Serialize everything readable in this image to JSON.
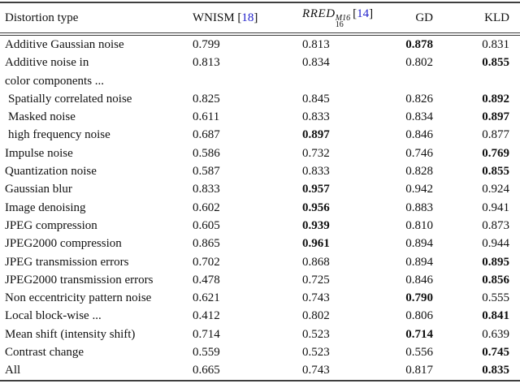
{
  "colors": {
    "citation_blue": "#2323cc",
    "text": "#111111",
    "rule": "#3f3f3f",
    "background": "#ffffff"
  },
  "table": {
    "header": {
      "col1": "Distortion type",
      "wnism_label": "WNISM",
      "wnism_cite": "18",
      "rred_label": "RRED",
      "rred_sup": "M16",
      "rred_sub": "16",
      "rred_cite": "14",
      "gd_label": "GD",
      "kld_label": "KLD",
      "bracket_open": "[",
      "bracket_close": "]"
    },
    "rows": [
      {
        "label": "Additive Gaussian noise",
        "indent": false,
        "values": [
          "0.799",
          "0.813",
          "0.878",
          "0.831"
        ],
        "bold": [
          false,
          false,
          true,
          false
        ]
      },
      {
        "label": "Additive noise in\ncolor components ...",
        "indent": false,
        "values": [
          "0.813",
          "0.834",
          "0.802",
          "0.855"
        ],
        "bold": [
          false,
          false,
          false,
          true
        ]
      },
      {
        "label": "Spatially correlated noise",
        "indent": true,
        "values": [
          "0.825",
          "0.845",
          "0.826",
          "0.892"
        ],
        "bold": [
          false,
          false,
          false,
          true
        ]
      },
      {
        "label": "Masked noise",
        "indent": true,
        "values": [
          "0.611",
          "0.833",
          "0.834",
          "0.897"
        ],
        "bold": [
          false,
          false,
          false,
          true
        ]
      },
      {
        "label": "high frequency noise",
        "indent": true,
        "values": [
          "0.687",
          "0.897",
          "0.846",
          "0.877"
        ],
        "bold": [
          false,
          true,
          false,
          false
        ]
      },
      {
        "label": "Impulse noise",
        "indent": false,
        "values": [
          "0.586",
          "0.732",
          "0.746",
          "0.769"
        ],
        "bold": [
          false,
          false,
          false,
          true
        ]
      },
      {
        "label": "Quantization noise",
        "indent": false,
        "values": [
          "0.587",
          "0.833",
          "0.828",
          "0.855"
        ],
        "bold": [
          false,
          false,
          false,
          true
        ]
      },
      {
        "label": "Gaussian blur",
        "indent": false,
        "values": [
          "0.833",
          "0.957",
          "0.942",
          "0.924"
        ],
        "bold": [
          false,
          true,
          false,
          false
        ]
      },
      {
        "label": "Image denoising",
        "indent": false,
        "values": [
          "0.602",
          "0.956",
          "0.883",
          "0.941"
        ],
        "bold": [
          false,
          true,
          false,
          false
        ]
      },
      {
        "label": "JPEG compression",
        "indent": false,
        "values": [
          "0.605",
          "0.939",
          "0.810",
          "0.873"
        ],
        "bold": [
          false,
          true,
          false,
          false
        ]
      },
      {
        "label": "JPEG2000 compression",
        "indent": false,
        "values": [
          "0.865",
          "0.961",
          "0.894",
          "0.944"
        ],
        "bold": [
          false,
          true,
          false,
          false
        ]
      },
      {
        "label": "JPEG transmission errors",
        "indent": false,
        "values": [
          "0.702",
          "0.868",
          "0.894",
          "0.895"
        ],
        "bold": [
          false,
          false,
          false,
          true
        ]
      },
      {
        "label": "JPEG2000 transmission errors",
        "indent": false,
        "values": [
          "0.478",
          "0.725",
          "0.846",
          "0.856"
        ],
        "bold": [
          false,
          false,
          false,
          true
        ]
      },
      {
        "label": "Non eccentricity pattern noise",
        "indent": false,
        "values": [
          "0.621",
          "0.743",
          "0.790",
          "0.555"
        ],
        "bold": [
          false,
          false,
          true,
          false
        ]
      },
      {
        "label": "Local block-wise ...",
        "indent": false,
        "values": [
          "0.412",
          "0.802",
          "0.806",
          "0.841"
        ],
        "bold": [
          false,
          false,
          false,
          true
        ]
      },
      {
        "label": "Mean shift (intensity shift)",
        "indent": false,
        "values": [
          "0.714",
          "0.523",
          "0.714",
          "0.639"
        ],
        "bold": [
          false,
          false,
          true,
          false
        ]
      },
      {
        "label": "Contrast change",
        "indent": false,
        "values": [
          "0.559",
          "0.523",
          "0.556",
          "0.745"
        ],
        "bold": [
          false,
          false,
          false,
          true
        ]
      },
      {
        "label": "All",
        "indent": false,
        "values": [
          "0.665",
          "0.743",
          "0.817",
          "0.835"
        ],
        "bold": [
          false,
          false,
          false,
          true
        ]
      }
    ]
  }
}
